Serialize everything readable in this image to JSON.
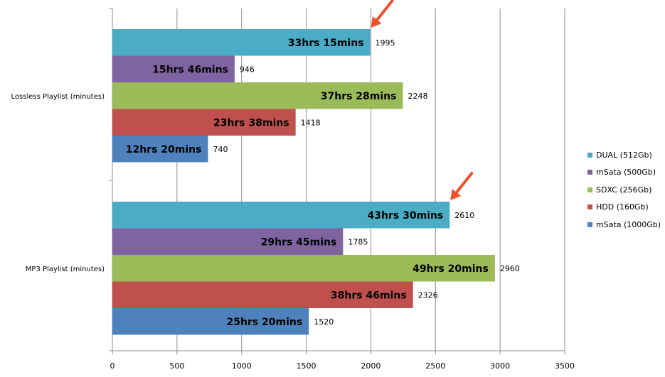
{
  "chart_data": {
    "type": "bar",
    "orientation": "horizontal",
    "categories": [
      "Lossless Playlist (minutes)",
      "MP3 Playlist (minutes)"
    ],
    "series": [
      {
        "name": "DUAL (512Gb)",
        "color": "#4BACC6",
        "values": [
          1995,
          2610
        ],
        "bar_labels": [
          "33hrs 15mins",
          "43hrs 30mins"
        ]
      },
      {
        "name": "mSata (500Gb)",
        "color": "#8064A2",
        "values": [
          946,
          1785
        ],
        "bar_labels": [
          "15hrs 46mins",
          "29hrs 45mins"
        ]
      },
      {
        "name": "SDXC (256Gb)",
        "color": "#9BBB59",
        "values": [
          2248,
          2960
        ],
        "bar_labels": [
          "37hrs 28mins",
          "49hrs 20mins"
        ]
      },
      {
        "name": "HDD (160Gb)",
        "color": "#C0504D",
        "values": [
          1418,
          2326
        ],
        "bar_labels": [
          "23hrs 38mins",
          "38hrs 46mins"
        ]
      },
      {
        "name": "mSata (1000Gb)",
        "color": "#4F81BD",
        "values": [
          740,
          1520
        ],
        "bar_labels": [
          "12hrs 20mins",
          "25hrs 20mins"
        ]
      }
    ],
    "xlim": [
      0,
      3500
    ],
    "xticks": [
      "0",
      "500",
      "1000",
      "1500",
      "2000",
      "2500",
      "3000",
      "3500"
    ],
    "grid": true,
    "legend_position": "right",
    "annotations": [
      {
        "type": "arrow",
        "color": "#F0502A",
        "points_to": "DUAL (512Gb) - Lossless Playlist (minutes)"
      },
      {
        "type": "arrow",
        "color": "#F0502A",
        "points_to": "DUAL (512Gb) - MP3 Playlist (minutes)"
      }
    ]
  }
}
